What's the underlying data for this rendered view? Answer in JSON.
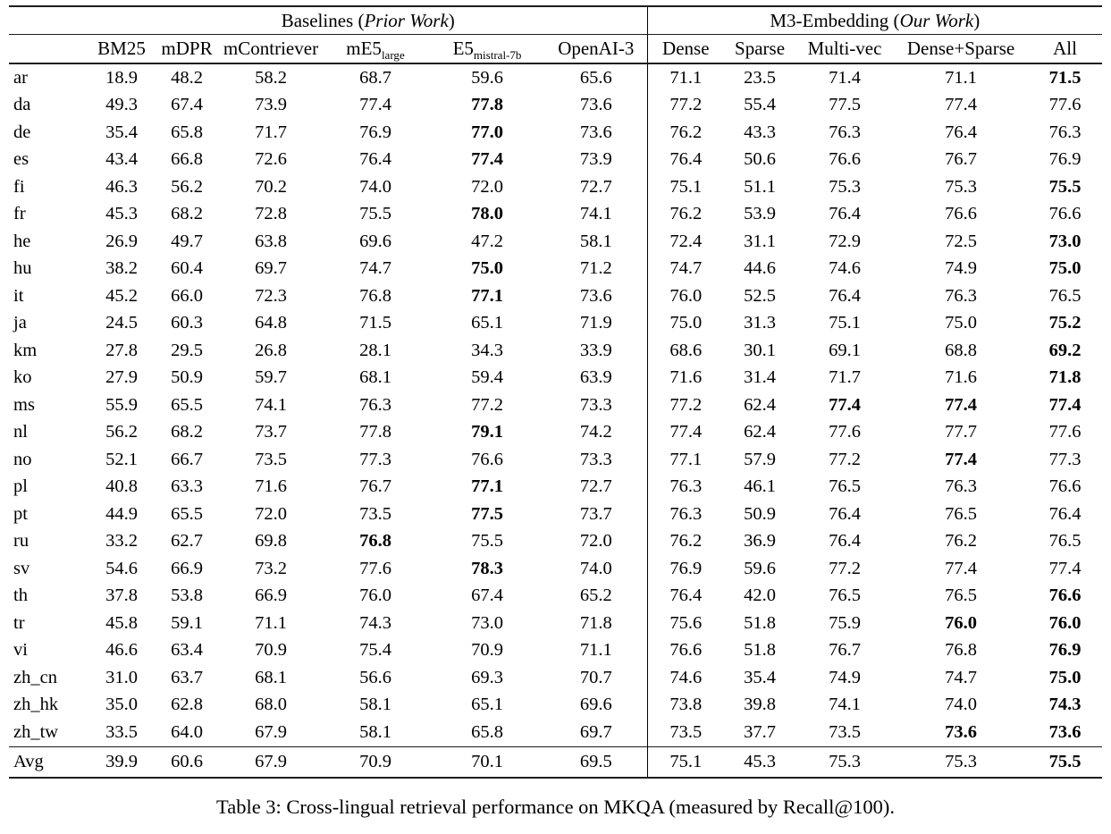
{
  "caption": "Table 3: Cross-lingual retrieval performance on MKQA (measured by Recall@100).",
  "table": {
    "groups": [
      {
        "text": "Baselines (",
        "italic": "Prior Work",
        "close": ")"
      },
      {
        "text": "M3-Embedding (",
        "italic": "Our Work",
        "close": ")"
      }
    ],
    "baseline_columns": [
      {
        "label": "BM25"
      },
      {
        "label": "mDPR"
      },
      {
        "label": "mContriever"
      },
      {
        "label": "mE5",
        "sub": "large"
      },
      {
        "label": "E5",
        "sub": "mistral-7b"
      },
      {
        "label": "OpenAI-3"
      }
    ],
    "m3_columns": [
      {
        "label": "Dense"
      },
      {
        "label": "Sparse"
      },
      {
        "label": "Multi-vec"
      },
      {
        "label": "Dense+Sparse"
      },
      {
        "label": "All"
      }
    ],
    "rows": [
      {
        "lang": "ar",
        "values": [
          "18.9",
          "48.2",
          "58.2",
          "68.7",
          "59.6",
          "65.6",
          "71.1",
          "23.5",
          "71.4",
          "71.1",
          "71.5"
        ],
        "bold": [
          10
        ]
      },
      {
        "lang": "da",
        "values": [
          "49.3",
          "67.4",
          "73.9",
          "77.4",
          "77.8",
          "73.6",
          "77.2",
          "55.4",
          "77.5",
          "77.4",
          "77.6"
        ],
        "bold": [
          4
        ]
      },
      {
        "lang": "de",
        "values": [
          "35.4",
          "65.8",
          "71.7",
          "76.9",
          "77.0",
          "73.6",
          "76.2",
          "43.3",
          "76.3",
          "76.4",
          "76.3"
        ],
        "bold": [
          4
        ]
      },
      {
        "lang": "es",
        "values": [
          "43.4",
          "66.8",
          "72.6",
          "76.4",
          "77.4",
          "73.9",
          "76.4",
          "50.6",
          "76.6",
          "76.7",
          "76.9"
        ],
        "bold": [
          4
        ]
      },
      {
        "lang": "fi",
        "values": [
          "46.3",
          "56.2",
          "70.2",
          "74.0",
          "72.0",
          "72.7",
          "75.1",
          "51.1",
          "75.3",
          "75.3",
          "75.5"
        ],
        "bold": [
          10
        ]
      },
      {
        "lang": "fr",
        "values": [
          "45.3",
          "68.2",
          "72.8",
          "75.5",
          "78.0",
          "74.1",
          "76.2",
          "53.9",
          "76.4",
          "76.6",
          "76.6"
        ],
        "bold": [
          4
        ]
      },
      {
        "lang": "he",
        "values": [
          "26.9",
          "49.7",
          "63.8",
          "69.6",
          "47.2",
          "58.1",
          "72.4",
          "31.1",
          "72.9",
          "72.5",
          "73.0"
        ],
        "bold": [
          10
        ]
      },
      {
        "lang": "hu",
        "values": [
          "38.2",
          "60.4",
          "69.7",
          "74.7",
          "75.0",
          "71.2",
          "74.7",
          "44.6",
          "74.6",
          "74.9",
          "75.0"
        ],
        "bold": [
          4,
          10
        ]
      },
      {
        "lang": "it",
        "values": [
          "45.2",
          "66.0",
          "72.3",
          "76.8",
          "77.1",
          "73.6",
          "76.0",
          "52.5",
          "76.4",
          "76.3",
          "76.5"
        ],
        "bold": [
          4
        ]
      },
      {
        "lang": "ja",
        "values": [
          "24.5",
          "60.3",
          "64.8",
          "71.5",
          "65.1",
          "71.9",
          "75.0",
          "31.3",
          "75.1",
          "75.0",
          "75.2"
        ],
        "bold": [
          10
        ]
      },
      {
        "lang": "km",
        "values": [
          "27.8",
          "29.5",
          "26.8",
          "28.1",
          "34.3",
          "33.9",
          "68.6",
          "30.1",
          "69.1",
          "68.8",
          "69.2"
        ],
        "bold": [
          10
        ]
      },
      {
        "lang": "ko",
        "values": [
          "27.9",
          "50.9",
          "59.7",
          "68.1",
          "59.4",
          "63.9",
          "71.6",
          "31.4",
          "71.7",
          "71.6",
          "71.8"
        ],
        "bold": [
          10
        ]
      },
      {
        "lang": "ms",
        "values": [
          "55.9",
          "65.5",
          "74.1",
          "76.3",
          "77.2",
          "73.3",
          "77.2",
          "62.4",
          "77.4",
          "77.4",
          "77.4"
        ],
        "bold": [
          8,
          9,
          10
        ]
      },
      {
        "lang": "nl",
        "values": [
          "56.2",
          "68.2",
          "73.7",
          "77.8",
          "79.1",
          "74.2",
          "77.4",
          "62.4",
          "77.6",
          "77.7",
          "77.6"
        ],
        "bold": [
          4
        ]
      },
      {
        "lang": "no",
        "values": [
          "52.1",
          "66.7",
          "73.5",
          "77.3",
          "76.6",
          "73.3",
          "77.1",
          "57.9",
          "77.2",
          "77.4",
          "77.3"
        ],
        "bold": [
          9
        ]
      },
      {
        "lang": "pl",
        "values": [
          "40.8",
          "63.3",
          "71.6",
          "76.7",
          "77.1",
          "72.7",
          "76.3",
          "46.1",
          "76.5",
          "76.3",
          "76.6"
        ],
        "bold": [
          4
        ]
      },
      {
        "lang": "pt",
        "values": [
          "44.9",
          "65.5",
          "72.0",
          "73.5",
          "77.5",
          "73.7",
          "76.3",
          "50.9",
          "76.4",
          "76.5",
          "76.4"
        ],
        "bold": [
          4
        ]
      },
      {
        "lang": "ru",
        "values": [
          "33.2",
          "62.7",
          "69.8",
          "76.8",
          "75.5",
          "72.0",
          "76.2",
          "36.9",
          "76.4",
          "76.2",
          "76.5"
        ],
        "bold": [
          3
        ]
      },
      {
        "lang": "sv",
        "values": [
          "54.6",
          "66.9",
          "73.2",
          "77.6",
          "78.3",
          "74.0",
          "76.9",
          "59.6",
          "77.2",
          "77.4",
          "77.4"
        ],
        "bold": [
          4
        ]
      },
      {
        "lang": "th",
        "values": [
          "37.8",
          "53.8",
          "66.9",
          "76.0",
          "67.4",
          "65.2",
          "76.4",
          "42.0",
          "76.5",
          "76.5",
          "76.6"
        ],
        "bold": [
          10
        ]
      },
      {
        "lang": "tr",
        "values": [
          "45.8",
          "59.1",
          "71.1",
          "74.3",
          "73.0",
          "71.8",
          "75.6",
          "51.8",
          "75.9",
          "76.0",
          "76.0"
        ],
        "bold": [
          9,
          10
        ]
      },
      {
        "lang": "vi",
        "values": [
          "46.6",
          "63.4",
          "70.9",
          "75.4",
          "70.9",
          "71.1",
          "76.6",
          "51.8",
          "76.7",
          "76.8",
          "76.9"
        ],
        "bold": [
          10
        ]
      },
      {
        "lang": "zh_cn",
        "values": [
          "31.0",
          "63.7",
          "68.1",
          "56.6",
          "69.3",
          "70.7",
          "74.6",
          "35.4",
          "74.9",
          "74.7",
          "75.0"
        ],
        "bold": [
          10
        ]
      },
      {
        "lang": "zh_hk",
        "values": [
          "35.0",
          "62.8",
          "68.0",
          "58.1",
          "65.1",
          "69.6",
          "73.8",
          "39.8",
          "74.1",
          "74.0",
          "74.3"
        ],
        "bold": [
          10
        ]
      },
      {
        "lang": "zh_tw",
        "values": [
          "33.5",
          "64.0",
          "67.9",
          "58.1",
          "65.8",
          "69.7",
          "73.5",
          "37.7",
          "73.5",
          "73.6",
          "73.6"
        ],
        "bold": [
          9,
          10
        ]
      }
    ],
    "avg_row": {
      "lang": "Avg",
      "values": [
        "39.9",
        "60.6",
        "67.9",
        "70.9",
        "70.1",
        "69.5",
        "75.1",
        "45.3",
        "75.3",
        "75.3",
        "75.5"
      ],
      "bold": [
        10
      ]
    }
  }
}
